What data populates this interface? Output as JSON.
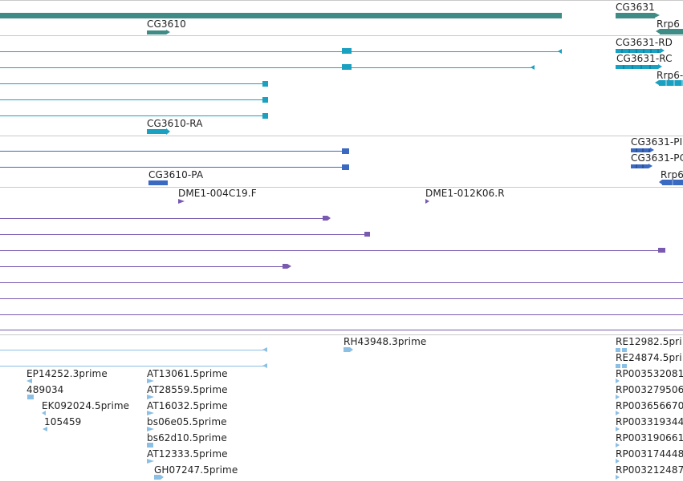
{
  "colors": {
    "gene": "#3f8b86",
    "transcript": "#1aa0c0",
    "protein": "#3a69c2",
    "probe": "#7a5ab0",
    "est": "#8bbfe3",
    "separator": "#c9c9c9",
    "label": "#1f1f1f"
  },
  "tracks": {
    "genes": {
      "labels": [
        "CG3610",
        "CG3631",
        "Rrp6"
      ]
    },
    "transcripts": {
      "labels": [
        "CG3631-RD",
        "CG3631-RC",
        "Rrp6-",
        "CG3610-RA"
      ]
    },
    "proteins": {
      "labels": [
        "CG3631-PI",
        "CG3631-PC",
        "Rrp6",
        "CG3610-PA"
      ]
    },
    "probes": {
      "labels": [
        "DME1-004C19.F",
        "DME1-012K06.R"
      ]
    },
    "ests": {
      "labels": [
        "RH43948.3prime",
        "RE12982.5pri",
        "RE24874.5pri",
        "EP14252.3prime",
        "AT13061.5prime",
        "RP003532081",
        "489034",
        "AT28559.5prime",
        "RP003279506",
        "EK092024.5prime",
        "AT16032.5prime",
        "RP003656670",
        "105459",
        "bs06e05.5prime",
        "RP003319344",
        "bs62d10.5prime",
        "RP003190661",
        "AT12333.5prime",
        "RP003174448",
        "GH07247.5prime",
        "RP003212487"
      ]
    }
  }
}
